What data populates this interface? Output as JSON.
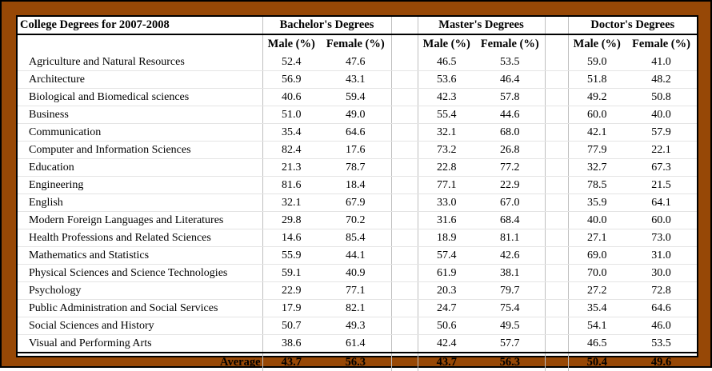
{
  "title": "College Degrees for 2007-2008",
  "groups": {
    "bachelor": "Bachelor's Degrees",
    "master": "Master's Degrees",
    "doctor": "Doctor's Degrees"
  },
  "subheaders": {
    "male": "Male (%)",
    "female": "Female (%)"
  },
  "rows": [
    {
      "field": "Agriculture and Natural Resources",
      "bm": "52.4",
      "bf": "47.6",
      "mm": "46.5",
      "mf": "53.5",
      "dm": "59.0",
      "df": "41.0"
    },
    {
      "field": "Architecture",
      "bm": "56.9",
      "bf": "43.1",
      "mm": "53.6",
      "mf": "46.4",
      "dm": "51.8",
      "df": "48.2"
    },
    {
      "field": "Biological and Biomedical sciences",
      "bm": "40.6",
      "bf": "59.4",
      "mm": "42.3",
      "mf": "57.8",
      "dm": "49.2",
      "df": "50.8"
    },
    {
      "field": "Business",
      "bm": "51.0",
      "bf": "49.0",
      "mm": "55.4",
      "mf": "44.6",
      "dm": "60.0",
      "df": "40.0"
    },
    {
      "field": "Communication",
      "bm": "35.4",
      "bf": "64.6",
      "mm": "32.1",
      "mf": "68.0",
      "dm": "42.1",
      "df": "57.9"
    },
    {
      "field": "Computer and Information Sciences",
      "bm": "82.4",
      "bf": "17.6",
      "mm": "73.2",
      "mf": "26.8",
      "dm": "77.9",
      "df": "22.1"
    },
    {
      "field": "Education",
      "bm": "21.3",
      "bf": "78.7",
      "mm": "22.8",
      "mf": "77.2",
      "dm": "32.7",
      "df": "67.3"
    },
    {
      "field": "Engineering",
      "bm": "81.6",
      "bf": "18.4",
      "mm": "77.1",
      "mf": "22.9",
      "dm": "78.5",
      "df": "21.5"
    },
    {
      "field": "English",
      "bm": "32.1",
      "bf": "67.9",
      "mm": "33.0",
      "mf": "67.0",
      "dm": "35.9",
      "df": "64.1"
    },
    {
      "field": "Modern Foreign Languages and Literatures",
      "bm": "29.8",
      "bf": "70.2",
      "mm": "31.6",
      "mf": "68.4",
      "dm": "40.0",
      "df": "60.0"
    },
    {
      "field": "Health Professions and Related Sciences",
      "bm": "14.6",
      "bf": "85.4",
      "mm": "18.9",
      "mf": "81.1",
      "dm": "27.1",
      "df": "73.0"
    },
    {
      "field": "Mathematics and Statistics",
      "bm": "55.9",
      "bf": "44.1",
      "mm": "57.4",
      "mf": "42.6",
      "dm": "69.0",
      "df": "31.0"
    },
    {
      "field": "Physical Sciences and Science Technologies",
      "bm": "59.1",
      "bf": "40.9",
      "mm": "61.9",
      "mf": "38.1",
      "dm": "70.0",
      "df": "30.0"
    },
    {
      "field": "Psychology",
      "bm": "22.9",
      "bf": "77.1",
      "mm": "20.3",
      "mf": "79.7",
      "dm": "27.2",
      "df": "72.8"
    },
    {
      "field": "Public Administration and Social Services",
      "bm": "17.9",
      "bf": "82.1",
      "mm": "24.7",
      "mf": "75.4",
      "dm": "35.4",
      "df": "64.6"
    },
    {
      "field": "Social Sciences and History",
      "bm": "50.7",
      "bf": "49.3",
      "mm": "50.6",
      "mf": "49.5",
      "dm": "54.1",
      "df": "46.0"
    },
    {
      "field": "Visual and Performing Arts",
      "bm": "38.6",
      "bf": "61.4",
      "mm": "42.4",
      "mf": "57.7",
      "dm": "46.5",
      "df": "53.5"
    }
  ],
  "average": {
    "label": "Average",
    "bm": "43.7",
    "bf": "56.3",
    "mm": "43.7",
    "mf": "56.3",
    "dm": "50.4",
    "df": "49.6"
  }
}
